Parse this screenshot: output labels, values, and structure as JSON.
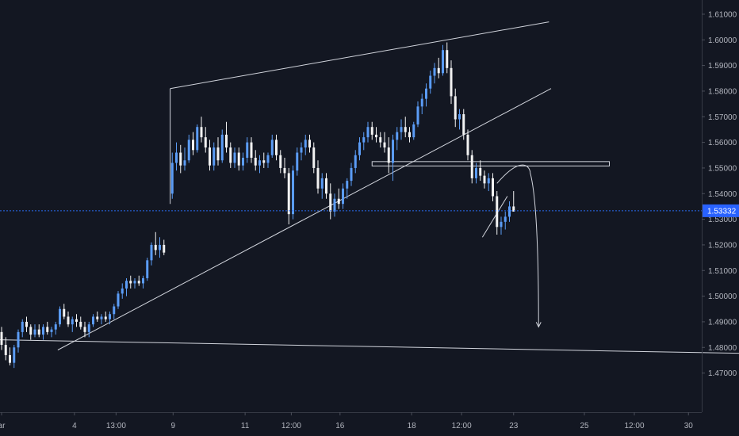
{
  "chart_data": {
    "type": "candlestick",
    "ylim": [
      1.464,
      1.614
    ],
    "y_ticks": [
      "1.47000",
      "1.48000",
      "1.49000",
      "1.50000",
      "1.51000",
      "1.52000",
      "1.53000",
      "1.54000",
      "1.55000",
      "1.56000",
      "1.57000",
      "1.58000",
      "1.59000",
      "1.60000",
      "1.61000"
    ],
    "x_ticks": [
      "ar",
      "4",
      "13:00",
      "9",
      "11",
      "12:00",
      "16",
      "18",
      "12:00",
      "23",
      "25",
      "12:00",
      "30"
    ],
    "x_ticks_pos": [
      0,
      17.5,
      27.5,
      41.2,
      58.5,
      69.6,
      81.3,
      98.5,
      110.5,
      123,
      140,
      152,
      165
    ],
    "current_price": "1.53332",
    "current_price_value": 1.53332,
    "colors": {
      "up": "#5b9cf6",
      "down": "#f2f2f2",
      "background": "#131722",
      "drawing": "#d1d4dc",
      "price_line": "#2a6cf0"
    },
    "candles": [
      [
        0,
        1.486,
        1.488,
        1.479,
        1.481
      ],
      [
        1,
        1.481,
        1.484,
        1.475,
        1.477
      ],
      [
        2,
        1.477,
        1.48,
        1.473,
        1.474
      ],
      [
        3,
        1.474,
        1.481,
        1.472,
        1.48
      ],
      [
        4,
        1.48,
        1.487,
        1.478,
        1.486
      ],
      [
        5,
        1.486,
        1.491,
        1.484,
        1.49
      ],
      [
        6,
        1.49,
        1.492,
        1.486,
        1.488
      ],
      [
        7,
        1.488,
        1.489,
        1.483,
        1.485
      ],
      [
        8,
        1.485,
        1.489,
        1.484,
        1.487
      ],
      [
        9,
        1.487,
        1.489,
        1.484,
        1.485
      ],
      [
        10,
        1.485,
        1.489,
        1.483,
        1.488
      ],
      [
        11,
        1.488,
        1.49,
        1.485,
        1.486
      ],
      [
        12,
        1.486,
        1.488,
        1.484,
        1.487
      ],
      [
        13,
        1.487,
        1.49,
        1.485,
        1.489
      ],
      [
        14,
        1.489,
        1.496,
        1.488,
        1.495
      ],
      [
        15,
        1.495,
        1.497,
        1.491,
        1.492
      ],
      [
        16,
        1.492,
        1.494,
        1.488,
        1.489
      ],
      [
        17,
        1.489,
        1.492,
        1.486,
        1.491
      ],
      [
        18,
        1.491,
        1.493,
        1.488,
        1.49
      ],
      [
        19,
        1.49,
        1.492,
        1.487,
        1.488
      ],
      [
        20,
        1.488,
        1.49,
        1.484,
        1.486
      ],
      [
        21,
        1.486,
        1.49,
        1.484,
        1.489
      ],
      [
        22,
        1.489,
        1.493,
        1.488,
        1.492
      ],
      [
        23,
        1.492,
        1.494,
        1.49,
        1.491
      ],
      [
        24,
        1.491,
        1.493,
        1.489,
        1.492
      ],
      [
        25,
        1.492,
        1.494,
        1.49,
        1.491
      ],
      [
        26,
        1.491,
        1.494,
        1.489,
        1.493
      ],
      [
        27,
        1.493,
        1.497,
        1.491,
        1.496
      ],
      [
        28,
        1.496,
        1.502,
        1.495,
        1.501
      ],
      [
        29,
        1.501,
        1.505,
        1.499,
        1.503
      ],
      [
        30,
        1.503,
        1.507,
        1.5,
        1.506
      ],
      [
        31,
        1.506,
        1.508,
        1.503,
        1.505
      ],
      [
        32,
        1.505,
        1.507,
        1.503,
        1.506
      ],
      [
        33,
        1.506,
        1.508,
        1.504,
        1.505
      ],
      [
        34,
        1.505,
        1.508,
        1.503,
        1.507
      ],
      [
        35,
        1.507,
        1.515,
        1.506,
        1.514
      ],
      [
        36,
        1.514,
        1.521,
        1.512,
        1.52
      ],
      [
        37,
        1.52,
        1.525,
        1.516,
        1.518
      ],
      [
        38,
        1.518,
        1.523,
        1.515,
        1.52
      ],
      [
        39,
        1.52,
        1.522,
        1.516,
        1.517
      ],
      [
        41,
        1.54,
        1.556,
        1.538,
        1.552
      ],
      [
        42,
        1.552,
        1.56,
        1.549,
        1.556
      ],
      [
        43,
        1.556,
        1.559,
        1.548,
        1.551
      ],
      [
        44,
        1.551,
        1.558,
        1.549,
        1.553
      ],
      [
        45,
        1.553,
        1.563,
        1.552,
        1.561
      ],
      [
        46,
        1.561,
        1.564,
        1.555,
        1.557
      ],
      [
        47,
        1.557,
        1.567,
        1.556,
        1.566
      ],
      [
        48,
        1.566,
        1.57,
        1.56,
        1.562
      ],
      [
        49,
        1.562,
        1.566,
        1.556,
        1.558
      ],
      [
        50,
        1.558,
        1.561,
        1.549,
        1.551
      ],
      [
        51,
        1.551,
        1.56,
        1.549,
        1.558
      ],
      [
        52,
        1.558,
        1.562,
        1.551,
        1.553
      ],
      [
        53,
        1.553,
        1.565,
        1.552,
        1.563
      ],
      [
        54,
        1.563,
        1.568,
        1.556,
        1.558
      ],
      [
        55,
        1.558,
        1.56,
        1.55,
        1.552
      ],
      [
        56,
        1.552,
        1.558,
        1.55,
        1.556
      ],
      [
        57,
        1.556,
        1.558,
        1.549,
        1.551
      ],
      [
        58,
        1.551,
        1.556,
        1.549,
        1.554
      ],
      [
        59,
        1.554,
        1.562,
        1.552,
        1.56
      ],
      [
        60,
        1.56,
        1.562,
        1.552,
        1.554
      ],
      [
        61,
        1.554,
        1.557,
        1.549,
        1.551
      ],
      [
        62,
        1.551,
        1.555,
        1.548,
        1.553
      ],
      [
        63,
        1.553,
        1.556,
        1.55,
        1.552
      ],
      [
        64,
        1.552,
        1.556,
        1.55,
        1.555
      ],
      [
        65,
        1.555,
        1.563,
        1.554,
        1.561
      ],
      [
        66,
        1.561,
        1.563,
        1.553,
        1.555
      ],
      [
        67,
        1.555,
        1.557,
        1.548,
        1.55
      ],
      [
        68,
        1.55,
        1.554,
        1.546,
        1.548
      ],
      [
        69,
        1.548,
        1.55,
        1.528,
        1.532
      ],
      [
        70,
        1.532,
        1.551,
        1.53,
        1.549
      ],
      [
        71,
        1.549,
        1.558,
        1.547,
        1.556
      ],
      [
        72,
        1.556,
        1.56,
        1.553,
        1.558
      ],
      [
        73,
        1.558,
        1.563,
        1.555,
        1.561
      ],
      [
        74,
        1.561,
        1.563,
        1.556,
        1.558
      ],
      [
        75,
        1.558,
        1.56,
        1.548,
        1.55
      ],
      [
        76,
        1.55,
        1.553,
        1.54,
        1.542
      ],
      [
        77,
        1.542,
        1.548,
        1.538,
        1.546
      ],
      [
        78,
        1.546,
        1.548,
        1.538,
        1.54
      ],
      [
        79,
        1.54,
        1.544,
        1.53,
        1.533
      ],
      [
        80,
        1.533,
        1.54,
        1.531,
        1.538
      ],
      [
        81,
        1.538,
        1.542,
        1.534,
        1.536
      ],
      [
        82,
        1.536,
        1.544,
        1.534,
        1.542
      ],
      [
        83,
        1.542,
        1.546,
        1.538,
        1.545
      ],
      [
        84,
        1.545,
        1.552,
        1.543,
        1.55
      ],
      [
        85,
        1.55,
        1.557,
        1.548,
        1.555
      ],
      [
        86,
        1.555,
        1.562,
        1.553,
        1.56
      ],
      [
        87,
        1.56,
        1.564,
        1.557,
        1.562
      ],
      [
        88,
        1.562,
        1.568,
        1.56,
        1.566
      ],
      [
        89,
        1.566,
        1.568,
        1.561,
        1.563
      ],
      [
        90,
        1.563,
        1.566,
        1.56,
        1.562
      ],
      [
        91,
        1.562,
        1.564,
        1.558,
        1.56
      ],
      [
        92,
        1.56,
        1.564,
        1.556,
        1.558
      ],
      [
        93,
        1.558,
        1.562,
        1.548,
        1.552
      ],
      [
        94,
        1.552,
        1.563,
        1.545,
        1.561
      ],
      [
        95,
        1.561,
        1.566,
        1.557,
        1.564
      ],
      [
        96,
        1.564,
        1.569,
        1.561,
        1.566
      ],
      [
        97,
        1.566,
        1.57,
        1.562,
        1.564
      ],
      [
        98,
        1.564,
        1.566,
        1.56,
        1.562
      ],
      [
        99,
        1.562,
        1.568,
        1.561,
        1.567
      ],
      [
        100,
        1.567,
        1.576,
        1.566,
        1.574
      ],
      [
        101,
        1.574,
        1.579,
        1.571,
        1.577
      ],
      [
        102,
        1.577,
        1.583,
        1.574,
        1.581
      ],
      [
        103,
        1.581,
        1.588,
        1.579,
        1.586
      ],
      [
        104,
        1.586,
        1.591,
        1.583,
        1.589
      ],
      [
        105,
        1.589,
        1.593,
        1.585,
        1.587
      ],
      [
        106,
        1.587,
        1.598,
        1.586,
        1.596
      ],
      [
        107,
        1.596,
        1.599,
        1.587,
        1.589
      ],
      [
        108,
        1.589,
        1.592,
        1.575,
        1.578
      ],
      [
        109,
        1.578,
        1.581,
        1.566,
        1.569
      ],
      [
        110,
        1.569,
        1.573,
        1.565,
        1.571
      ],
      [
        111,
        1.571,
        1.573,
        1.561,
        1.563
      ],
      [
        112,
        1.563,
        1.565,
        1.553,
        1.555
      ],
      [
        113,
        1.555,
        1.557,
        1.544,
        1.546
      ],
      [
        114,
        1.546,
        1.552,
        1.544,
        1.55
      ],
      [
        115,
        1.55,
        1.553,
        1.545,
        1.547
      ],
      [
        116,
        1.547,
        1.549,
        1.542,
        1.544
      ],
      [
        117,
        1.544,
        1.548,
        1.541,
        1.546
      ],
      [
        118,
        1.546,
        1.548,
        1.537,
        1.539
      ],
      [
        119,
        1.539,
        1.541,
        1.524,
        1.527
      ],
      [
        120,
        1.527,
        1.531,
        1.524,
        1.529
      ],
      [
        121,
        1.529,
        1.533,
        1.526,
        1.531
      ],
      [
        122,
        1.531,
        1.537,
        1.529,
        1.535
      ],
      [
        123,
        1.535,
        1.541,
        1.533,
        1.533
      ]
    ],
    "drawings": {
      "channel_upper": [
        [
          40.5,
          1.581
        ],
        [
          131.5,
          1.607
        ]
      ],
      "lower_trendline": [
        [
          13.5,
          1.479
        ],
        [
          132,
          1.581
        ]
      ],
      "bottom_line": [
        [
          -1,
          1.483
        ],
        [
          201,
          1.477
        ]
      ],
      "connector": [
        [
          40.5,
          1.581
        ],
        [
          40.5,
          1.536
        ]
      ],
      "resistance_box": [
        [
          89,
          1.5525
        ],
        [
          146,
          1.5508
        ]
      ],
      "wedge_line": [
        [
          115.5,
          1.523
        ],
        [
          121.5,
          1.539
        ]
      ],
      "projection_path": [
        [
          119,
          1.544
        ],
        [
          125,
          1.551
        ],
        [
          127,
          1.548
        ],
        [
          129,
          1.488
        ]
      ]
    }
  }
}
